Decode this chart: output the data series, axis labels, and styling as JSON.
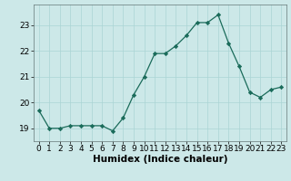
{
  "x": [
    0,
    1,
    2,
    3,
    4,
    5,
    6,
    7,
    8,
    9,
    10,
    11,
    12,
    13,
    14,
    15,
    16,
    17,
    18,
    19,
    20,
    21,
    22,
    23
  ],
  "y": [
    19.7,
    19.0,
    19.0,
    19.1,
    19.1,
    19.1,
    19.1,
    18.9,
    19.4,
    20.3,
    21.0,
    21.9,
    21.9,
    22.2,
    22.6,
    23.1,
    23.1,
    23.4,
    22.3,
    21.4,
    20.4,
    20.2,
    20.5,
    20.6
  ],
  "xlabel": "Humidex (Indice chaleur)",
  "line_color": "#1a6b5a",
  "marker_color": "#1a6b5a",
  "bg_color": "#cce8e8",
  "grid_color": "#aad4d4",
  "ylim": [
    18.5,
    23.8
  ],
  "xlim": [
    -0.5,
    23.5
  ],
  "yticks": [
    19,
    20,
    21,
    22,
    23
  ],
  "xtick_labels": [
    "0",
    "1",
    "2",
    "3",
    "4",
    "5",
    "6",
    "7",
    "8",
    "9",
    "10",
    "11",
    "12",
    "13",
    "14",
    "15",
    "16",
    "17",
    "18",
    "19",
    "20",
    "21",
    "22",
    "23"
  ],
  "xlabel_fontsize": 7.5,
  "tick_fontsize": 6.5
}
